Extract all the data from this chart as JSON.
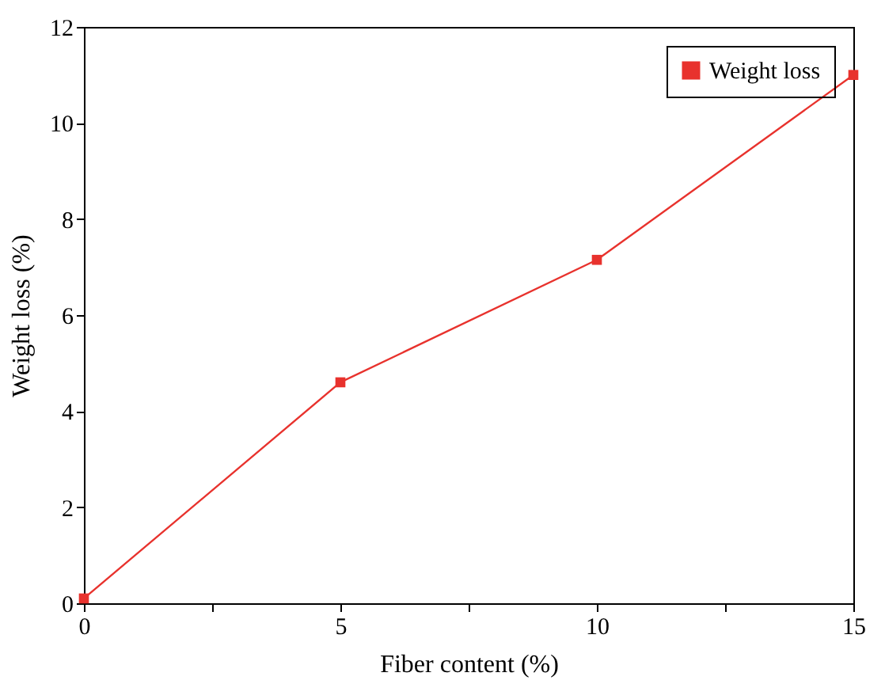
{
  "chart_data": {
    "type": "line",
    "xlabel": "Fiber content (%)",
    "ylabel": "Weight loss (%)",
    "x": [
      0,
      5,
      10,
      15
    ],
    "series": [
      {
        "name": "Weight loss",
        "color": "#e8322d",
        "values": [
          0.1,
          4.6,
          7.15,
          11.0
        ]
      }
    ],
    "xlim": [
      0,
      15
    ],
    "ylim": [
      0,
      12
    ],
    "xticks": [
      0,
      {
        "value": 2.5,
        "label": null
      },
      5,
      {
        "value": 7.5,
        "label": null
      },
      10,
      {
        "value": 12.5,
        "label": null
      },
      15
    ],
    "yticks": [
      0,
      2,
      4,
      6,
      8,
      10,
      12
    ],
    "marker": "square",
    "line_style": "solid",
    "legend": "top right",
    "grid": false
  }
}
